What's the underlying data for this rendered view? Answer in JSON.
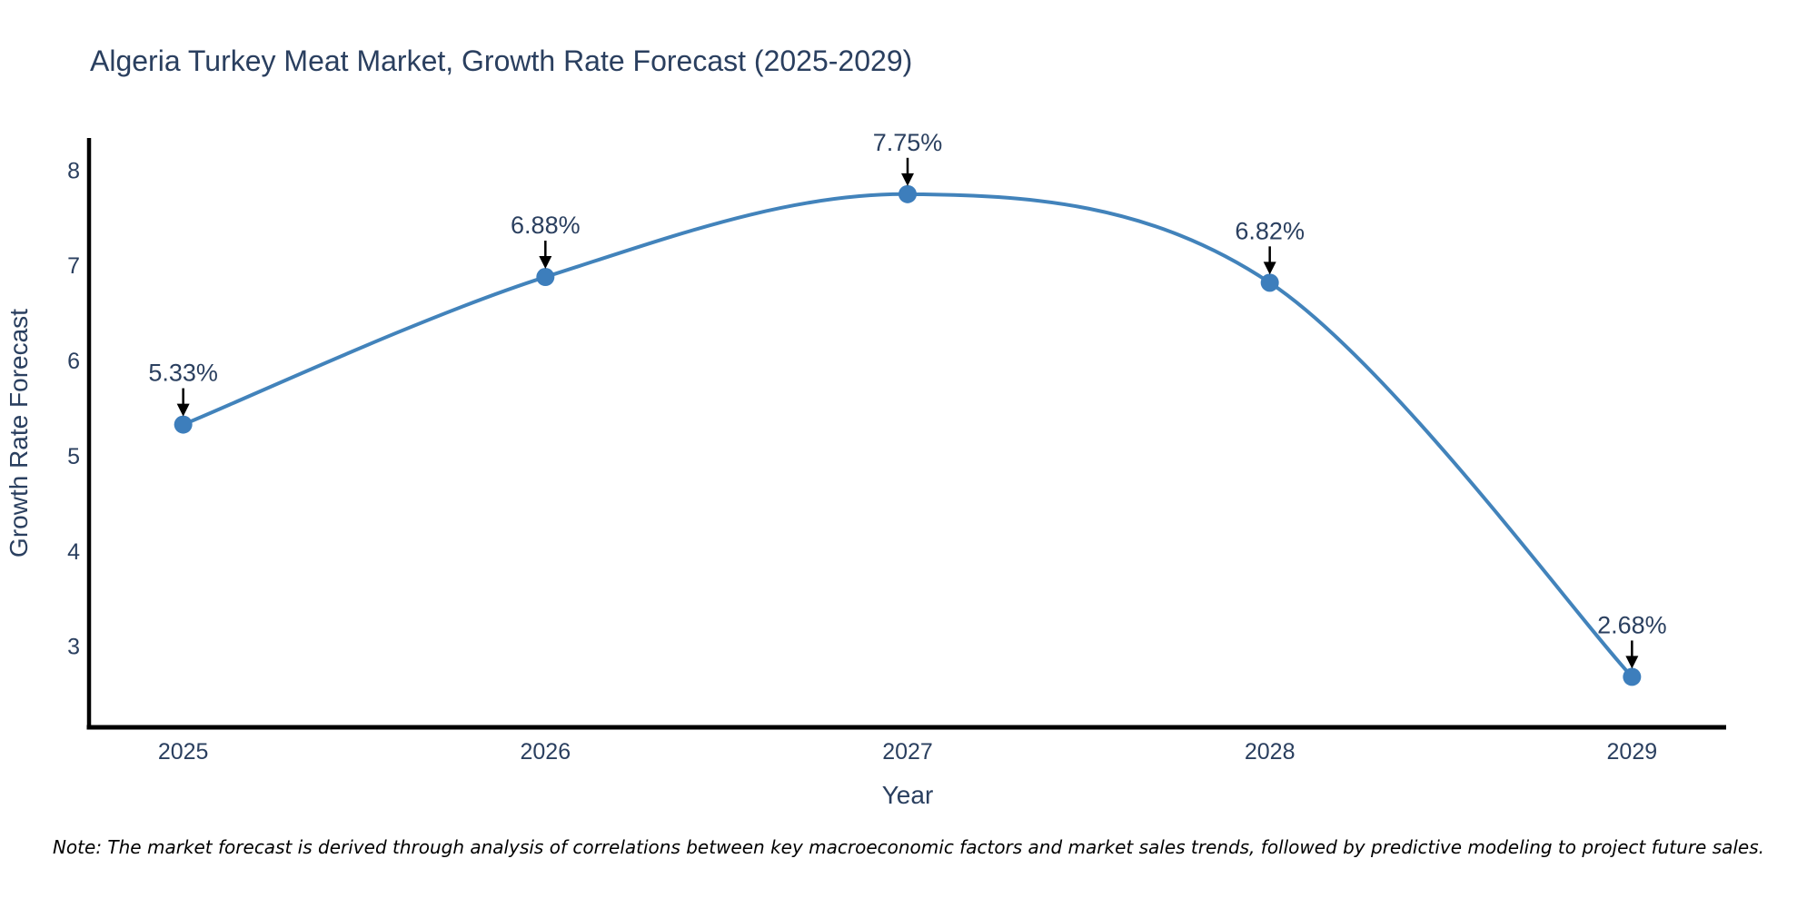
{
  "page": {
    "background_color": "#ffffff"
  },
  "chart": {
    "note": "Note: The market forecast is derived through analysis of correlations between key macroeconomic factors and market sales trends, followed by predictive modeling to project future sales.",
    "colors": {
      "line": "#4283bb",
      "marker": "#3d7ebc",
      "axis_line": "#000000",
      "text": "#2a3f5f",
      "annotation_arrow": "#000000",
      "note_text": "#000000"
    }
  },
  "chart_data": {
    "type": "line",
    "title": "Algeria Turkey Meat Market, Growth Rate Forecast (2025-2029)",
    "xlabel": "Year",
    "ylabel": "Growth Rate Forecast",
    "x": [
      2025,
      2026,
      2027,
      2028,
      2029
    ],
    "values": [
      5.33,
      6.88,
      7.75,
      6.82,
      2.68
    ],
    "point_labels": [
      "5.33%",
      "6.88%",
      "7.75%",
      "6.82%",
      "2.68%"
    ],
    "x_tick_labels": [
      "2025",
      "2026",
      "2027",
      "2028",
      "2029"
    ],
    "yticks": [
      3,
      4,
      5,
      6,
      7,
      8
    ],
    "ylim": [
      2.15,
      8.33
    ],
    "xlim": [
      2024.74,
      2029.26
    ],
    "line_shape": "spline",
    "grid": false,
    "legend_position": "none"
  }
}
